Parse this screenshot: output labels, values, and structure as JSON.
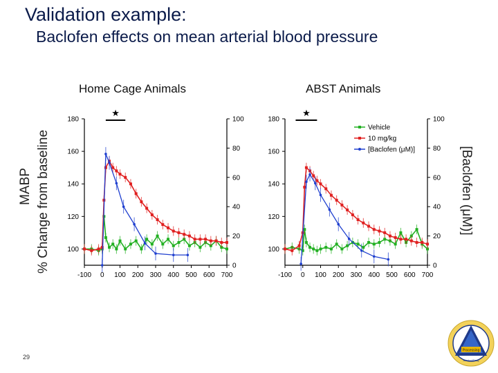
{
  "slide": {
    "title": "Validation example:",
    "subtitle": "Baclofen effects on mean arterial blood pressure",
    "page_number": "29"
  },
  "chart_data": [
    {
      "type": "line",
      "title": "Home Cage Animals",
      "ylabel_outer": "MABP",
      "ylabel": "% Change from baseline",
      "y2label": "",
      "xlim": [
        -100,
        700
      ],
      "ylim": [
        90,
        180
      ],
      "y2lim": [
        0,
        100
      ],
      "x_ticks": [
        "-100",
        "0",
        "100",
        "200",
        "300",
        "400",
        "500",
        "600",
        "700"
      ],
      "y_ticks": [
        "100",
        "120",
        "140",
        "160",
        "180"
      ],
      "y2_ticks": [
        "0",
        "20",
        "40",
        "60",
        "80",
        "100"
      ],
      "significance_marker": "★",
      "significance_span": [
        20,
        130
      ],
      "colors": {
        "vehicle": "#22b022",
        "dose": "#e02020",
        "baclofen": "#1f3fcf"
      },
      "series": [
        {
          "key": "vehicle",
          "axis": "left",
          "x": [
            -100,
            -60,
            -20,
            0,
            10,
            20,
            40,
            60,
            80,
            100,
            130,
            160,
            190,
            220,
            250,
            280,
            310,
            340,
            370,
            400,
            430,
            460,
            490,
            520,
            550,
            580,
            610,
            640,
            670,
            700
          ],
          "y": [
            100,
            100,
            99,
            100,
            120,
            107,
            101,
            103,
            100,
            105,
            100,
            103,
            105,
            100,
            106,
            103,
            108,
            103,
            106,
            102,
            104,
            106,
            102,
            104,
            101,
            104,
            102,
            105,
            101,
            100
          ]
        },
        {
          "key": "dose",
          "axis": "left",
          "x": [
            -100,
            -60,
            -20,
            0,
            10,
            20,
            40,
            60,
            80,
            100,
            130,
            160,
            190,
            220,
            250,
            280,
            310,
            340,
            370,
            400,
            430,
            460,
            490,
            520,
            550,
            580,
            610,
            640,
            670,
            700
          ],
          "y": [
            100,
            99,
            100,
            101,
            130,
            150,
            154,
            150,
            148,
            146,
            144,
            140,
            134,
            129,
            125,
            121,
            118,
            115,
            113,
            111,
            110,
            109,
            108,
            106,
            106,
            106,
            105,
            105,
            104,
            104
          ]
        },
        {
          "key": "baclofen",
          "axis": "right",
          "x": [
            0,
            20,
            40,
            80,
            120,
            180,
            240,
            300,
            400,
            480
          ],
          "y": [
            0,
            76,
            70,
            56,
            40,
            28,
            15,
            8,
            7,
            7
          ]
        }
      ]
    },
    {
      "type": "line",
      "title": "ABST Animals",
      "ylabel": "",
      "y2label": "[Baclofen (μM)]",
      "xlim": [
        -100,
        700
      ],
      "ylim": [
        90,
        180
      ],
      "y2lim": [
        0,
        100
      ],
      "x_ticks": [
        "-100",
        "0",
        "100",
        "200",
        "300",
        "400",
        "500",
        "600",
        "700"
      ],
      "y_ticks": [
        "100",
        "120",
        "140",
        "160",
        "180"
      ],
      "y2_ticks": [
        "0",
        "20",
        "40",
        "60",
        "80",
        "100"
      ],
      "significance_marker": "★",
      "significance_span": [
        -40,
        80
      ],
      "legend": {
        "position": "top-right",
        "entries": [
          {
            "key": "vehicle",
            "label": "Vehicle"
          },
          {
            "key": "dose",
            "label": "10 mg/kg"
          },
          {
            "key": "baclofen",
            "label": "[Baclofen (μM)]"
          }
        ]
      },
      "colors": {
        "vehicle": "#22b022",
        "dose": "#e02020",
        "baclofen": "#1f3fcf"
      },
      "series": [
        {
          "key": "vehicle",
          "axis": "left",
          "x": [
            -100,
            -60,
            -20,
            0,
            10,
            20,
            40,
            60,
            80,
            100,
            130,
            160,
            190,
            220,
            250,
            280,
            310,
            340,
            370,
            400,
            430,
            460,
            490,
            520,
            550,
            580,
            610,
            640,
            670,
            700
          ],
          "y": [
            100,
            101,
            100,
            99,
            112,
            104,
            101,
            100,
            99,
            100,
            101,
            100,
            103,
            100,
            102,
            104,
            103,
            101,
            104,
            103,
            104,
            106,
            105,
            103,
            110,
            104,
            108,
            112,
            103,
            100
          ]
        },
        {
          "key": "dose",
          "axis": "left",
          "x": [
            -100,
            -60,
            -20,
            0,
            10,
            20,
            40,
            60,
            80,
            100,
            130,
            160,
            190,
            220,
            250,
            280,
            310,
            340,
            370,
            400,
            430,
            460,
            490,
            520,
            550,
            580,
            610,
            640,
            670,
            700
          ],
          "y": [
            100,
            99,
            102,
            110,
            138,
            150,
            148,
            145,
            142,
            140,
            137,
            133,
            130,
            127,
            124,
            121,
            118,
            116,
            114,
            112,
            111,
            110,
            108,
            107,
            106,
            106,
            105,
            104,
            104,
            103
          ]
        },
        {
          "key": "baclofen",
          "axis": "right",
          "x": [
            -10,
            20,
            40,
            70,
            100,
            150,
            200,
            260,
            330,
            400,
            480
          ],
          "y": [
            1,
            57,
            62,
            56,
            48,
            38,
            28,
            18,
            10,
            6,
            4
          ]
        }
      ]
    }
  ],
  "logo": {
    "center_text": "Processing",
    "bottom_text": "Alcohol/Drug"
  }
}
